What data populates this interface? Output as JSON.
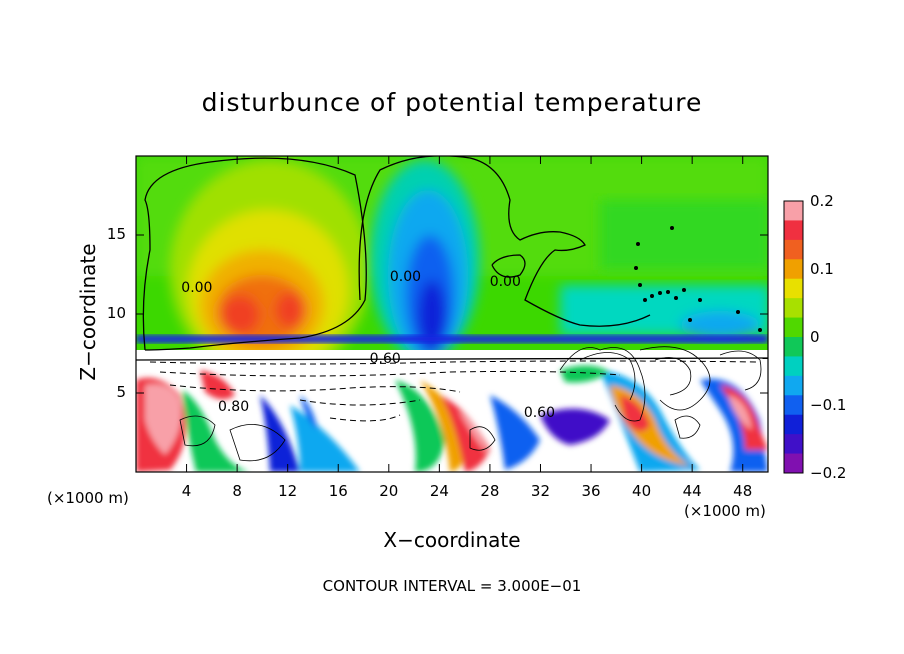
{
  "chart_data": {
    "type": "heatmap",
    "title": "disturbunce of potential temperature",
    "xlabel": "X−coordinate",
    "ylabel": "Z−coordinate",
    "x_unit_left": "(×1000 m)",
    "x_unit_right": "(×1000 m)",
    "x_ticks": [
      "4",
      "8",
      "12",
      "16",
      "20",
      "24",
      "28",
      "32",
      "36",
      "40",
      "44",
      "48"
    ],
    "y_ticks": [
      "5",
      "10",
      "15"
    ],
    "xlim": [
      0,
      50
    ],
    "ylim": [
      0,
      20
    ],
    "colorbar": {
      "ticks": [
        "0.2",
        "0.1",
        "0",
        "−0.1",
        "−0.2"
      ],
      "range": [
        -0.2,
        0.2
      ],
      "colors": [
        "#f8a0a8",
        "#f03040",
        "#f06020",
        "#f0a000",
        "#e8e000",
        "#a8e000",
        "#50d800",
        "#10c858",
        "#00d0c0",
        "#10a8f0",
        "#1060f0",
        "#1020d8",
        "#4010c8",
        "#8010b0"
      ]
    },
    "contour_labels": [
      "0.00",
      "0.00",
      "0.60",
      "0.00",
      "0.60",
      "0.80"
    ],
    "note": "CONTOUR INTERVAL = 3.000E−01",
    "grid": false,
    "legend": "right"
  }
}
